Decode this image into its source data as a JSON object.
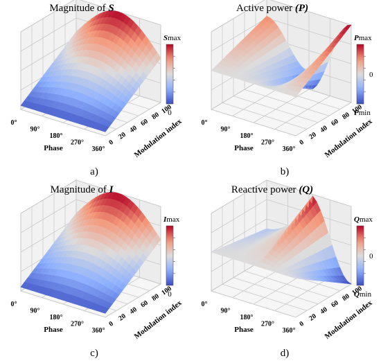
{
  "chart_data": [
    {
      "panel": "a)",
      "type": "surface3d",
      "title_text": "Magnitude of ",
      "title_symbol": "S",
      "xlabel": "Phase",
      "ylabel": "Modulation index",
      "x_ticks": [
        "0°",
        "90°",
        "180°",
        "270°",
        "360°"
      ],
      "y_ticks": [
        "0",
        "20",
        "40",
        "60",
        "80",
        "100"
      ],
      "colorbar": {
        "top_symbol": "S",
        "top_suffix": "max",
        "mid": "",
        "bottom_symbol": "",
        "bottom_text": "0",
        "min": 0,
        "max": 1
      },
      "colormap": "coolwarm",
      "shape": "bump",
      "z_range": [
        0,
        1
      ],
      "x_range_deg": [
        0,
        360
      ],
      "y_range": [
        0,
        100
      ]
    },
    {
      "panel": "b)",
      "type": "surface3d",
      "title_text": "Active power ",
      "title_symbol": "(P)",
      "xlabel": "Phase",
      "ylabel": "Modulation index",
      "x_ticks": [
        "0°",
        "90°",
        "180°",
        "270°",
        "360°"
      ],
      "y_ticks": [
        "0",
        "20",
        "40",
        "60",
        "80",
        "100"
      ],
      "colorbar": {
        "top_symbol": "P",
        "top_suffix": "max",
        "mid": "0",
        "bottom_symbol": "P",
        "bottom_text": "min",
        "min": -1,
        "max": 1
      },
      "colormap": "coolwarm",
      "shape": "cosine",
      "z_range": [
        -1,
        1
      ],
      "x_range_deg": [
        0,
        360
      ],
      "y_range": [
        0,
        100
      ]
    },
    {
      "panel": "c)",
      "type": "surface3d",
      "title_text": "Magnitude of ",
      "title_symbol": "I",
      "xlabel": "Phase",
      "ylabel": "Modulation index",
      "x_ticks": [
        "0°",
        "90°",
        "180°",
        "270°",
        "360°"
      ],
      "y_ticks": [
        "0",
        "20",
        "40",
        "60",
        "80",
        "100"
      ],
      "colorbar": {
        "top_symbol": "I",
        "top_suffix": "max",
        "mid": "",
        "bottom_symbol": "",
        "bottom_text": "0",
        "min": 0,
        "max": 1
      },
      "colormap": "coolwarm",
      "shape": "bump",
      "z_range": [
        0,
        1
      ],
      "x_range_deg": [
        0,
        360
      ],
      "y_range": [
        0,
        100
      ]
    },
    {
      "panel": "d)",
      "type": "surface3d",
      "title_text": "Reactive power ",
      "title_symbol": "(Q)",
      "xlabel": "Phase",
      "ylabel": "Modulation index",
      "x_ticks": [
        "0°",
        "90°",
        "180°",
        "270°",
        "360°"
      ],
      "y_ticks": [
        "0",
        "20",
        "40",
        "60",
        "80",
        "100"
      ],
      "colorbar": {
        "top_symbol": "Q",
        "top_suffix": "max",
        "mid": "0",
        "bottom_symbol": "Q",
        "bottom_text": "min",
        "min": -1,
        "max": 1
      },
      "colormap": "coolwarm",
      "shape": "sine",
      "z_range": [
        -1,
        1
      ],
      "x_range_deg": [
        0,
        360
      ],
      "y_range": [
        0,
        100
      ]
    }
  ]
}
